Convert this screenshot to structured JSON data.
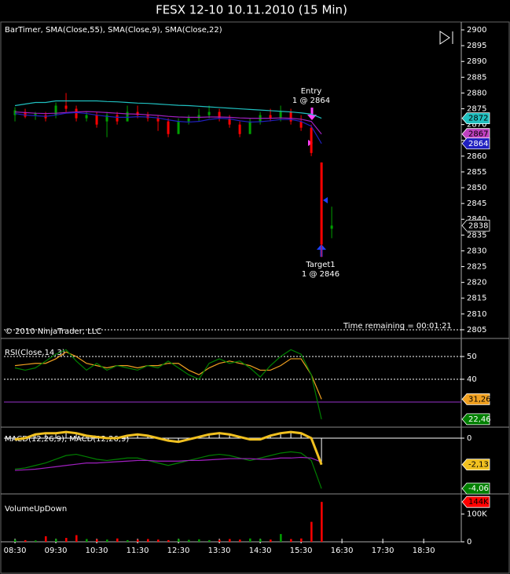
{
  "title": "FESX 12-10  10.11.2010 (15 Min)",
  "chart_data": [
    {
      "type": "candlestick",
      "label": "BarTimer, SMA(Close,55), SMA(Close,9), SMA(Close,22)",
      "copyright": "© 2010 NinjaTrader, LLC",
      "time_remaining": "Time remaining = 00:01:21",
      "entry": "Entry",
      "entry_qty": "1 @ 2864",
      "target": "Target1",
      "target_qty": "1 @ 2846",
      "x": [
        8.5,
        8.75,
        9,
        9.25,
        9.5,
        9.75,
        10,
        10.25,
        10.5,
        10.75,
        11,
        11.25,
        11.5,
        11.75,
        12,
        12.25,
        12.5,
        12.75,
        13,
        13.25,
        13.5,
        13.75,
        14,
        14.25,
        14.5,
        14.75,
        15,
        15.25,
        15.5,
        15.75,
        16,
        16.25
      ],
      "open": [
        2873,
        2874,
        2873,
        2873,
        2873,
        2876,
        2875,
        2872,
        2873,
        2871,
        2873,
        2871,
        2874,
        2873,
        2872,
        2871,
        2867,
        2871,
        2872,
        2873,
        2874,
        2872,
        2870,
        2867,
        2871,
        2873,
        2872,
        2874,
        2871,
        2869,
        2858,
        2837
      ],
      "high": [
        2875.5,
        2875,
        2874,
        2874,
        2877,
        2880,
        2876,
        2874,
        2874,
        2874,
        2874,
        2876,
        2876,
        2874,
        2873,
        2872,
        2872,
        2873,
        2875,
        2876,
        2875,
        2873,
        2871,
        2872,
        2874,
        2875,
        2876,
        2875,
        2873,
        2870,
        2858,
        2844
      ],
      "low": [
        2871,
        2872,
        2871.5,
        2871,
        2872,
        2874,
        2871,
        2871,
        2869,
        2866,
        2870,
        2871,
        2872,
        2871,
        2868,
        2866,
        2867,
        2870,
        2871,
        2872,
        2871,
        2869,
        2866,
        2867,
        2870,
        2871,
        2871,
        2870,
        2868,
        2860,
        2828,
        2834
      ],
      "close": [
        2874.5,
        2872.5,
        2873.5,
        2872,
        2876,
        2875,
        2872,
        2873,
        2870,
        2873,
        2871,
        2874,
        2873,
        2872,
        2871,
        2867,
        2871,
        2872,
        2873,
        2874,
        2872,
        2870,
        2867,
        2871,
        2873,
        2872,
        2874,
        2871,
        2869,
        2861,
        2832,
        2838
      ],
      "up_color": "#00a000",
      "down_color": "#ff0000",
      "series": [
        {
          "color": "#20c0c0",
          "values": [
            2876,
            2876.5,
            2877,
            2877,
            2877.5,
            2877.5,
            2877.5,
            2877.5,
            2877.5,
            2877.3,
            2877.2,
            2877,
            2876.8,
            2876.7,
            2876.5,
            2876.3,
            2876.1,
            2876,
            2875.8,
            2875.6,
            2875.4,
            2875.2,
            2875,
            2874.8,
            2874.6,
            2874.4,
            2874.2,
            2874,
            2873.7,
            2873.3,
            2872,
            null
          ]
        },
        {
          "color": "#a020c0",
          "values": [
            2874,
            2873.8,
            2873.6,
            2873.5,
            2873.6,
            2873.8,
            2874,
            2874.1,
            2874,
            2873.8,
            2873.6,
            2873.4,
            2873.3,
            2873.1,
            2872.9,
            2872.6,
            2872.4,
            2872.3,
            2872.3,
            2872.4,
            2872.4,
            2872.3,
            2872.1,
            2872,
            2872,
            2872,
            2872.1,
            2872,
            2871.7,
            2871,
            2867,
            null
          ]
        },
        {
          "color": "#2020c0",
          "values": [
            2873.5,
            2873,
            2872.8,
            2872.6,
            2873,
            2873.6,
            2873.8,
            2873.5,
            2873,
            2872.6,
            2872.3,
            2872.3,
            2872.5,
            2872.4,
            2872.1,
            2871.5,
            2871,
            2870.8,
            2871,
            2871.6,
            2872,
            2871.8,
            2871.2,
            2870.8,
            2870.9,
            2871.2,
            2871.6,
            2871.6,
            2871,
            2869.5,
            2864,
            null
          ]
        }
      ],
      "ylim": [
        2802.5,
        2902
      ],
      "yticks": [
        2805,
        2810,
        2815,
        2820,
        2825,
        2830,
        2835,
        2840,
        2845,
        2850,
        2855,
        2860,
        2865,
        2870,
        2875,
        2880,
        2885,
        2890,
        2895,
        2900
      ],
      "markers": [
        {
          "value": 2872,
          "color": "#20c0c0",
          "text_color": "#000000"
        },
        {
          "value": 2867,
          "color": "#c040c0",
          "text_color": "#000000"
        },
        {
          "value": 2864,
          "color": "#2020c0",
          "text_color": "#ffffff"
        },
        {
          "value": 2838,
          "color": "#000000",
          "text_color": "#ffffff"
        }
      ]
    },
    {
      "type": "line",
      "label": "RSI(Close,14,3)",
      "ylim": [
        19.3,
        57.6
      ],
      "yticks": [
        50,
        40
      ],
      "grid": "dotted",
      "levels": [
        {
          "value": 30,
          "color": "#9932cc"
        }
      ],
      "series": [
        {
          "color": "#f0a020",
          "values": [
            46,
            46.5,
            47,
            47,
            49,
            52,
            50,
            47,
            46,
            45,
            46,
            46,
            45,
            46,
            46,
            47,
            47,
            44,
            42,
            45,
            47,
            48,
            47,
            46,
            44,
            44,
            46,
            49,
            49,
            42,
            31.26,
            null
          ]
        },
        {
          "color": "#008000",
          "values": [
            45,
            44,
            45,
            48,
            51,
            53,
            48,
            44,
            47,
            44,
            46,
            45,
            44,
            46,
            45,
            48,
            45,
            42,
            40,
            47,
            49,
            47,
            48,
            45,
            41,
            46,
            50,
            53,
            51,
            42,
            22.46,
            null
          ]
        }
      ],
      "markers": [
        {
          "value": 31.26,
          "label": "31,26",
          "color": "#f0a020",
          "text_color": "#000000"
        },
        {
          "value": 22.46,
          "label": "22,46",
          "color": "#008000",
          "text_color": "#ffffff"
        }
      ]
    },
    {
      "type": "macd",
      "label": "MACD(12,26,9), MACD(12,26,9)",
      "ylim": [
        -4.43,
        0.76
      ],
      "yticks": [
        0
      ],
      "grid": "solid",
      "series": [
        {
          "color": "#008000",
          "values": [
            -2.5,
            -2.4,
            -2.2,
            -2,
            -1.7,
            -1.4,
            -1.3,
            -1.5,
            -1.7,
            -1.8,
            -1.7,
            -1.6,
            -1.6,
            -1.8,
            -2,
            -2.2,
            -2,
            -1.8,
            -1.6,
            -1.4,
            -1.3,
            -1.4,
            -1.6,
            -1.8,
            -1.6,
            -1.4,
            -1.2,
            -1.1,
            -1.2,
            -1.8,
            -4.06,
            null
          ]
        },
        {
          "color": "#a020c0",
          "values": [
            -2.6,
            -2.55,
            -2.5,
            -2.4,
            -2.3,
            -2.2,
            -2.1,
            -2,
            -2,
            -1.95,
            -1.9,
            -1.85,
            -1.8,
            -1.8,
            -1.85,
            -1.85,
            -1.85,
            -1.8,
            -1.8,
            -1.75,
            -1.7,
            -1.65,
            -1.65,
            -1.65,
            -1.7,
            -1.7,
            -1.6,
            -1.6,
            -1.55,
            -1.6,
            -1.93,
            null
          ]
        },
        {
          "color": "#f0c020",
          "histogram_color": "#ffffff",
          "values": [
            -0.1,
            0,
            0.3,
            0.4,
            0.4,
            0.5,
            0.4,
            0.2,
            0.1,
            0,
            0,
            0.2,
            0.3,
            0.2,
            0,
            -0.2,
            -0.3,
            -0.1,
            0.1,
            0.3,
            0.4,
            0.3,
            0.1,
            -0.1,
            -0.1,
            0.2,
            0.4,
            0.5,
            0.4,
            0,
            -2.13,
            null
          ]
        }
      ],
      "markers": [
        {
          "value": -2.13,
          "label": "-2,13",
          "color": "#f0c020",
          "text_color": "#000000"
        },
        {
          "value": -4.06,
          "label": "-4,06",
          "color": "#008000",
          "text_color": "#ffffff"
        }
      ]
    },
    {
      "type": "volume",
      "label": "VolumeUpDown",
      "values": [
        8000,
        6000,
        5000,
        20000,
        10000,
        14000,
        24000,
        10000,
        9000,
        8000,
        12000,
        6000,
        8000,
        10000,
        8000,
        6000,
        10000,
        7000,
        9000,
        6000,
        7000,
        10000,
        8000,
        12000,
        10000,
        8000,
        28000,
        10000,
        12000,
        72000,
        144000,
        null
      ],
      "ylim": [
        0,
        170000
      ],
      "yticks": [
        0,
        {
          "value": 100000,
          "label": "100K"
        }
      ],
      "markers": [
        {
          "value": 144000,
          "label": "144K",
          "color": "#ff0000",
          "text_color": "#000000"
        }
      ],
      "xlim": [
        8.23,
        19.42
      ],
      "xticks": [
        {
          "value": 8.5,
          "label": "08:30"
        },
        {
          "value": 9.5,
          "label": "09:30"
        },
        {
          "value": 10.5,
          "label": "10:30"
        },
        {
          "value": 11.5,
          "label": "11:30"
        },
        {
          "value": 12.5,
          "label": "12:30"
        },
        {
          "value": 13.5,
          "label": "13:30"
        },
        {
          "value": 14.5,
          "label": "14:30"
        },
        {
          "value": 15.5,
          "label": "15:30"
        },
        {
          "value": 16.5,
          "label": "16:30"
        },
        {
          "value": 17.5,
          "label": "17:30"
        },
        {
          "value": 18.5,
          "label": "18:30"
        }
      ]
    }
  ]
}
